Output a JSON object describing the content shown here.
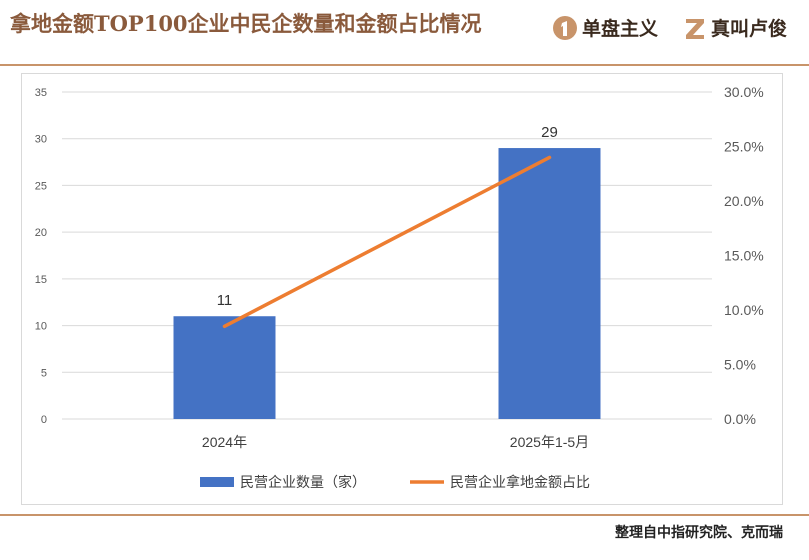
{
  "header": {
    "title": "拿地金额TOP100企业中民企数量和金额占比情况",
    "brand1": "单盘主义",
    "brand2": "真叫卢俊"
  },
  "footer": {
    "source": "整理自中指研究院、克而瑞"
  },
  "colors": {
    "bar": "#4472c4",
    "line": "#ed7d31",
    "accent": "#c8946a"
  },
  "chart_data": {
    "type": "bar+line",
    "categories": [
      "2024年",
      "2025年1-5月"
    ],
    "series": [
      {
        "name": "民营企业数量（家）",
        "type": "bar",
        "axis": "left",
        "values": [
          11,
          29
        ],
        "labels": [
          "11",
          "29"
        ]
      },
      {
        "name": "民营企业拿地金额占比",
        "type": "line",
        "axis": "right",
        "values": [
          8.5,
          24
        ]
      }
    ],
    "left_axis": {
      "min": 0,
      "max": 35,
      "ticks": [
        "0",
        "5",
        "10",
        "15",
        "20",
        "25",
        "30",
        "35"
      ]
    },
    "right_axis": {
      "min": 0,
      "max": 30,
      "ticks": [
        "0.0%",
        "5.0%",
        "10.0%",
        "15.0%",
        "20.0%",
        "25.0%",
        "30.0%"
      ]
    },
    "legend": [
      "民营企业数量（家）",
      "民营企业拿地金额占比"
    ],
    "legend_position": "bottom",
    "grid": true
  }
}
